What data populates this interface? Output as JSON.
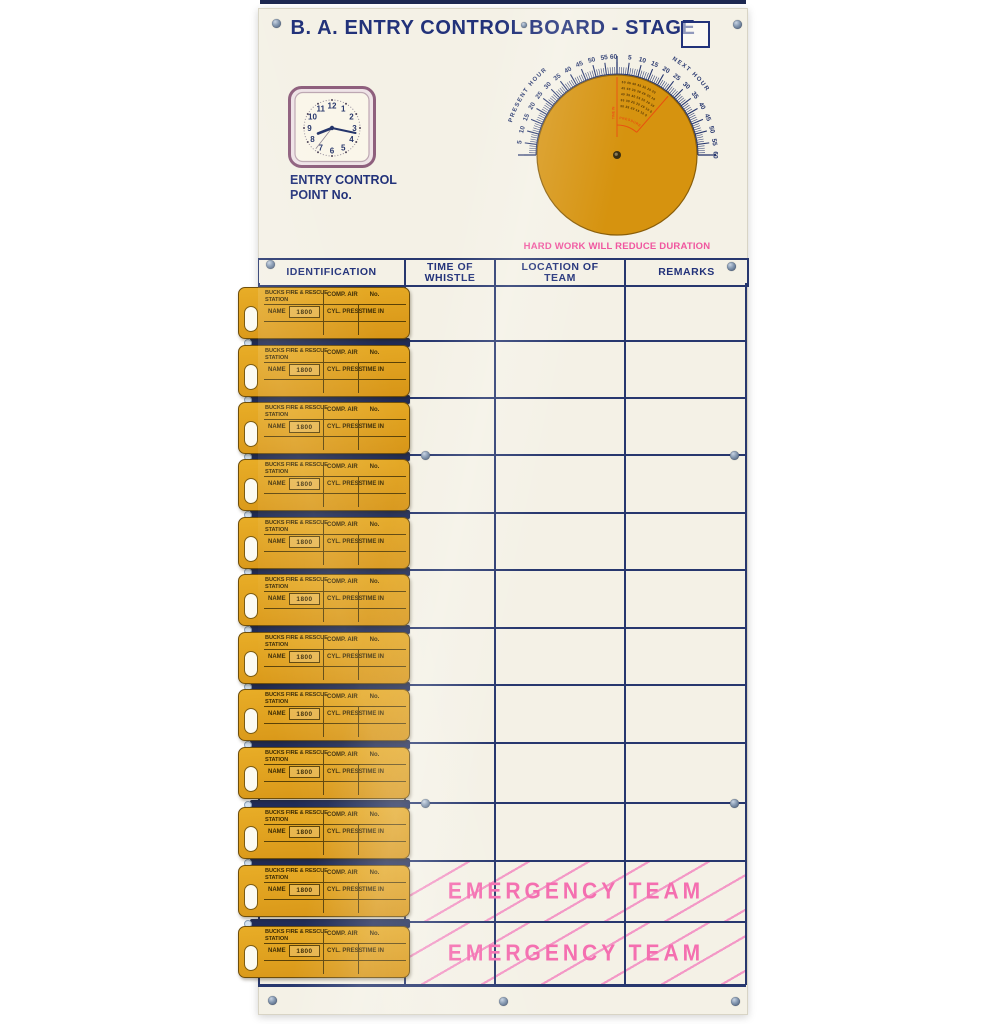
{
  "board": {
    "title": "B. A. ENTRY CONTROL BOARD - STAGE",
    "stage_box_value": "",
    "entry_control_point": {
      "line1": "ENTRY CONTROL",
      "line2": "POINT No."
    },
    "warning": "HARD WORK WILL REDUCE DURATION"
  },
  "clock": {
    "numbers": [
      "1",
      "2",
      "3",
      "4",
      "5",
      "6",
      "7",
      "8",
      "9",
      "10",
      "11",
      "12"
    ],
    "approx_time": "8:17"
  },
  "dial": {
    "left_scale_label": "PRESENT HOUR",
    "right_scale_label": "NEXT HOUR",
    "scale_numbers": [
      5,
      10,
      15,
      20,
      25,
      30,
      35,
      40,
      45,
      50,
      55,
      60
    ],
    "minor_tick_step": 1,
    "major_tick_step": 5,
    "wedge_side_label": "TIME IN",
    "wedge_arc_label": "PRESSURE",
    "fine_print_rows": [
      "50 45 40 35 30 25 20",
      "45 40 35 30 25 20 15",
      "40 35 30 25 20 15 10",
      "35 30 25 20 15 10 5",
      "30 25 20 15 10 5"
    ]
  },
  "table": {
    "headers": [
      {
        "line1": "IDENTIFICATION",
        "line2": ""
      },
      {
        "line1": "TIME OF",
        "line2": "WHISTLE"
      },
      {
        "line1": "LOCATION OF",
        "line2": "TEAM"
      },
      {
        "line1": "REMARKS",
        "line2": ""
      }
    ],
    "row_count": 12,
    "emergency_label": "EMERGENCY TEAM",
    "emergency_rows": [
      11,
      12
    ]
  },
  "tally_tag": {
    "count": 12,
    "brigade_line1": "BUCKS FIRE & RESCUE",
    "brigade_line2": "STATION",
    "comp_air_label": "COMP. AIR",
    "no_label": "No.",
    "name_label": "NAME",
    "set_number": "1800",
    "cyl_press_label": "CYL. PRESS",
    "time_in_label": "TIME IN"
  },
  "colors": {
    "board_bg": "#f4f1e6",
    "line_navy": "#27376e",
    "title_navy": "#22327a",
    "tag_amber": "#e0a11c",
    "disc_orange": "#d6930f",
    "pink_accent": "#f0559f",
    "hatch_pink": "#f393c4",
    "rail_navy": "#202c58",
    "wedge_red": "#e8500f"
  }
}
